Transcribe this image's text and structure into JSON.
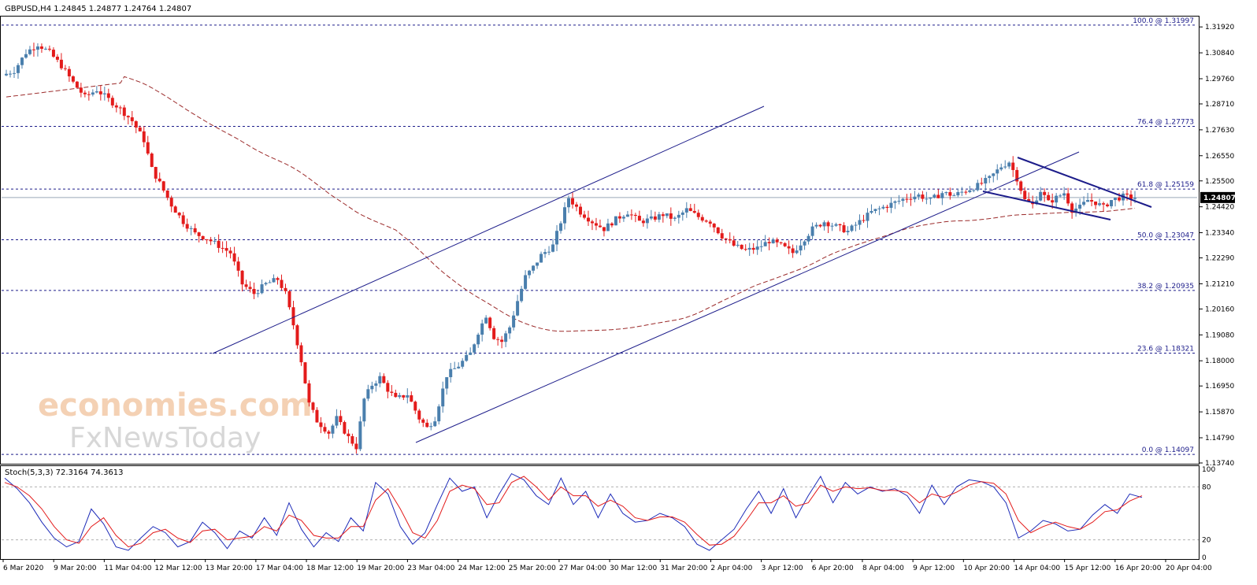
{
  "header": {
    "symbol_line": "GBPUSD,H4  1.24845 1.24877 1.24764 1.24807"
  },
  "watermark": {
    "line1": "economies.com",
    "line2": "FxNewsToday"
  },
  "stoch_label": "Stoch(5,3,3) 72.3164 74.3613",
  "colors": {
    "bull": "#4a7fad",
    "bear": "#e31b1b",
    "ma": "#9b2a2a",
    "trendline": "#1c1c8a",
    "grid": "#1c1c8a",
    "stoch_main": "#1c2ab8",
    "stoch_signal": "#e31b1b"
  },
  "chart_data": [
    {
      "type": "candlestick",
      "title": "GBPUSD,H4",
      "ylim": [
        1.1374,
        1.3232
      ],
      "price_ticks": [
        "1.31920",
        "1.30840",
        "1.29760",
        "1.28710",
        "1.27630",
        "1.26550",
        "1.25500",
        "1.24420",
        "1.23340",
        "1.22290",
        "1.21210",
        "1.20160",
        "1.19080",
        "1.18000",
        "1.16950",
        "1.15870",
        "1.14790",
        "1.13740"
      ],
      "current_price": "1.24807",
      "x_labels": [
        "6 Mar 2020",
        "9 Mar 20:00",
        "11 Mar 04:00",
        "12 Mar 12:00",
        "13 Mar 20:00",
        "17 Mar 04:00",
        "18 Mar 12:00",
        "19 Mar 20:00",
        "23 Mar 04:00",
        "24 Mar 12:00",
        "25 Mar 20:00",
        "27 Mar 04:00",
        "30 Mar 12:00",
        "31 Mar 20:00",
        "2 Apr 04:00",
        "3 Apr 12:00",
        "6 Apr 20:00",
        "8 Apr 04:00",
        "9 Apr 12:00",
        "10 Apr 20:00",
        "14 Apr 04:00",
        "15 Apr 12:00",
        "16 Apr 20:00",
        "20 Apr 04:00"
      ],
      "fibonacci_levels": [
        {
          "label": "100.0 @ 1.31997",
          "price": 1.31997
        },
        {
          "label": "76.4 @ 1.27773",
          "price": 1.27773
        },
        {
          "label": "61.8 @ 1.25159",
          "price": 1.25159
        },
        {
          "label": "50.0 @ 1.23047",
          "price": 1.23047
        },
        {
          "label": "38.2 @ 1.20935",
          "price": 1.20935
        },
        {
          "label": "23.6 @ 1.18321",
          "price": 1.18321
        },
        {
          "label": "0.0 @ 1.14097",
          "price": 1.14097
        }
      ],
      "price_path": [
        [
          0,
          1.299
        ],
        [
          3,
          1.301
        ],
        [
          6,
          1.3085
        ],
        [
          9,
          1.312
        ],
        [
          12,
          1.3085
        ],
        [
          15,
          1.303
        ],
        [
          18,
          1.296
        ],
        [
          21,
          1.29
        ],
        [
          24,
          1.293
        ],
        [
          27,
          1.289
        ],
        [
          30,
          1.285
        ],
        [
          33,
          1.28
        ],
        [
          36,
          1.272
        ],
        [
          38,
          1.26
        ],
        [
          40,
          1.254
        ],
        [
          43,
          1.245
        ],
        [
          46,
          1.238
        ],
        [
          49,
          1.233
        ],
        [
          52,
          1.231
        ],
        [
          55,
          1.228
        ],
        [
          58,
          1.225
        ],
        [
          61,
          1.212
        ],
        [
          64,
          1.208
        ],
        [
          67,
          1.212
        ],
        [
          70,
          1.214
        ],
        [
          72,
          1.208
        ],
        [
          74,
          1.195
        ],
        [
          76,
          1.18
        ],
        [
          78,
          1.162
        ],
        [
          80,
          1.155
        ],
        [
          83,
          1.15
        ],
        [
          85,
          1.156
        ],
        [
          88,
          1.148
        ],
        [
          90,
          1.144
        ],
        [
          92,
          1.164
        ],
        [
          94,
          1.17
        ],
        [
          96,
          1.173
        ],
        [
          98,
          1.168
        ],
        [
          100,
          1.164
        ],
        [
          103,
          1.166
        ],
        [
          106,
          1.156
        ],
        [
          108,
          1.152
        ],
        [
          110,
          1.156
        ],
        [
          113,
          1.174
        ],
        [
          116,
          1.178
        ],
        [
          119,
          1.183
        ],
        [
          121,
          1.192
        ],
        [
          123,
          1.199
        ],
        [
          125,
          1.19
        ],
        [
          127,
          1.188
        ],
        [
          129,
          1.194
        ],
        [
          131,
          1.205
        ],
        [
          133,
          1.215
        ],
        [
          135,
          1.219
        ],
        [
          137,
          1.224
        ],
        [
          140,
          1.228
        ],
        [
          142,
          1.238
        ],
        [
          144,
          1.248
        ],
        [
          147,
          1.242
        ],
        [
          150,
          1.238
        ],
        [
          153,
          1.235
        ],
        [
          156,
          1.239
        ],
        [
          159,
          1.242
        ],
        [
          162,
          1.238
        ],
        [
          165,
          1.239
        ],
        [
          168,
          1.241
        ],
        [
          171,
          1.239
        ],
        [
          174,
          1.243
        ],
        [
          177,
          1.24
        ],
        [
          180,
          1.238
        ],
        [
          183,
          1.232
        ],
        [
          186,
          1.228
        ],
        [
          189,
          1.226
        ],
        [
          192,
          1.227
        ],
        [
          195,
          1.23
        ],
        [
          198,
          1.228
        ],
        [
          201,
          1.225
        ],
        [
          203,
          1.229
        ],
        [
          206,
          1.235
        ],
        [
          209,
          1.238
        ],
        [
          212,
          1.236
        ],
        [
          215,
          1.234
        ],
        [
          218,
          1.238
        ],
        [
          221,
          1.242
        ],
        [
          224,
          1.244
        ],
        [
          227,
          1.246
        ],
        [
          230,
          1.248
        ],
        [
          233,
          1.249
        ],
        [
          236,
          1.247
        ],
        [
          239,
          1.25
        ],
        [
          242,
          1.249
        ],
        [
          245,
          1.251
        ],
        [
          248,
          1.253
        ],
        [
          251,
          1.256
        ],
        [
          254,
          1.261
        ],
        [
          256,
          1.263
        ],
        [
          258,
          1.256
        ],
        [
          260,
          1.247
        ],
        [
          262,
          1.245
        ],
        [
          264,
          1.251
        ],
        [
          266,
          1.246
        ],
        [
          268,
          1.248
        ],
        [
          270,
          1.25
        ],
        [
          272,
          1.243
        ],
        [
          274,
          1.244
        ],
        [
          276,
          1.247
        ],
        [
          278,
          1.246
        ],
        [
          280,
          1.244
        ],
        [
          282,
          1.247
        ],
        [
          285,
          1.2485
        ],
        [
          287,
          1.2481
        ]
      ],
      "annotations": [
        "ascending channel",
        "falling wedge",
        "100-period moving average"
      ]
    },
    {
      "type": "line",
      "title": "Stoch(5,3,3)",
      "ylim": [
        0,
        100
      ],
      "y_ticks": [
        "100",
        "80",
        "20",
        "0"
      ],
      "series": [
        {
          "name": "%K",
          "values": [
            90,
            78,
            62,
            40,
            22,
            12,
            18,
            55,
            38,
            12,
            8,
            22,
            35,
            28,
            12,
            18,
            40,
            28,
            10,
            30,
            22,
            45,
            25,
            62,
            32,
            12,
            28,
            18,
            45,
            30,
            85,
            72,
            35,
            15,
            28,
            60,
            90,
            75,
            80,
            45,
            72,
            95,
            88,
            70,
            60,
            90,
            60,
            75,
            45,
            72,
            50,
            40,
            42,
            50,
            45,
            35,
            15,
            8,
            20,
            32,
            55,
            75,
            50,
            78,
            45,
            70,
            92,
            62,
            85,
            72,
            80,
            75,
            78,
            70,
            50,
            82,
            60,
            80,
            88,
            86,
            80,
            62,
            22,
            30,
            42,
            38,
            30,
            32,
            48,
            60,
            50,
            72,
            68
          ]
        },
        {
          "name": "%D",
          "values": [
            85,
            80,
            70,
            55,
            35,
            20,
            16,
            35,
            45,
            25,
            12,
            16,
            28,
            32,
            22,
            17,
            30,
            32,
            20,
            22,
            24,
            35,
            30,
            48,
            42,
            25,
            22,
            22,
            35,
            35,
            65,
            78,
            55,
            28,
            22,
            42,
            75,
            82,
            78,
            60,
            62,
            85,
            92,
            80,
            65,
            80,
            70,
            70,
            58,
            65,
            58,
            45,
            42,
            46,
            46,
            40,
            26,
            14,
            15,
            24,
            42,
            62,
            62,
            70,
            58,
            62,
            82,
            75,
            80,
            78,
            79,
            76,
            76,
            74,
            62,
            72,
            68,
            74,
            82,
            86,
            84,
            72,
            42,
            28,
            35,
            40,
            35,
            32,
            40,
            52,
            54,
            64,
            70
          ]
        }
      ]
    }
  ]
}
